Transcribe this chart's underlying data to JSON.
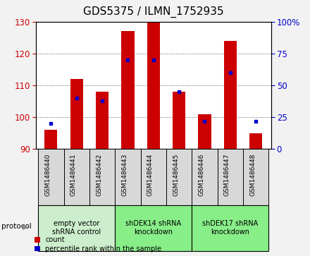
{
  "title": "GDS5375 / ILMN_1752935",
  "samples": [
    "GSM1486440",
    "GSM1486441",
    "GSM1486442",
    "GSM1486443",
    "GSM1486444",
    "GSM1486445",
    "GSM1486446",
    "GSM1486447",
    "GSM1486448"
  ],
  "count_values": [
    96,
    112,
    108,
    127,
    130,
    108,
    101,
    124,
    95
  ],
  "percentile_values": [
    20,
    40,
    38,
    70,
    70,
    45,
    22,
    60,
    22
  ],
  "ylim_left": [
    90,
    130
  ],
  "ylim_right": [
    0,
    100
  ],
  "yticks_left": [
    90,
    100,
    110,
    120,
    130
  ],
  "yticks_right": [
    0,
    25,
    50,
    75,
    100
  ],
  "bar_color": "#cc0000",
  "dot_color": "#0000cc",
  "bar_bottom": 90,
  "bar_width": 0.5,
  "groups": [
    {
      "label": "empty vector\nshRNA control",
      "start": 0,
      "end": 3,
      "color": "#cceecc"
    },
    {
      "label": "shDEK14 shRNA\nknockdown",
      "start": 3,
      "end": 6,
      "color": "#88ee88"
    },
    {
      "label": "shDEK17 shRNA\nknockdown",
      "start": 6,
      "end": 9,
      "color": "#88ee88"
    }
  ],
  "sample_box_color": "#d8d8d8",
  "protocol_label": "protocol",
  "legend_count_label": "count",
  "legend_percentile_label": "percentile rank within the sample",
  "bg_color": "#f2f2f2",
  "plot_bg_color": "#ffffff",
  "title_fontsize": 11,
  "axis_color_left": "#cc0000",
  "axis_color_right": "#0000cc"
}
